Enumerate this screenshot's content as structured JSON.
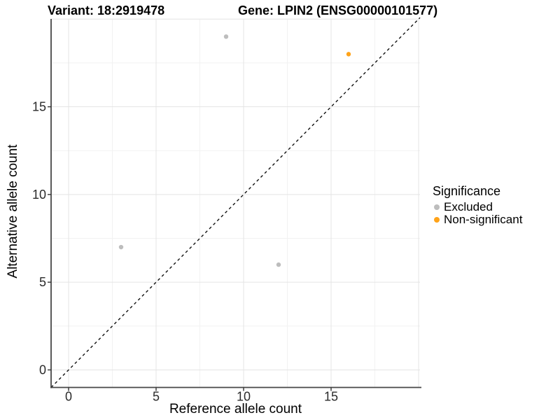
{
  "chart_data": {
    "type": "scatter",
    "title_left": "Variant: 18:2919478",
    "title_right": "Gene: LPIN2 (ENSG00000101577)",
    "xlabel": "Reference allele count",
    "ylabel": "Alternative allele count",
    "xlim": [
      -1,
      20.08
    ],
    "ylim": [
      -1,
      20.01
    ],
    "x_ticks": [
      0,
      5,
      10,
      15
    ],
    "y_ticks": [
      0,
      5,
      10,
      15
    ],
    "x_major_gridlines": [
      0,
      5,
      10,
      15,
      20
    ],
    "y_major_gridlines": [
      0,
      5,
      10,
      15,
      20
    ],
    "x_minor_gridlines": [
      2.5,
      7.5,
      12.5,
      17.5
    ],
    "y_minor_gridlines": [
      2.5,
      7.5,
      12.5,
      17.5
    ],
    "grid": "major+minor",
    "identity_line": {
      "style": "dashed",
      "equation": "y = x",
      "from": -1,
      "to": 20.08
    },
    "series": [
      {
        "name": "Excluded",
        "color": "#BDBDBD",
        "points": [
          [
            3,
            7
          ],
          [
            9,
            19
          ],
          [
            12,
            6
          ]
        ]
      },
      {
        "name": "Non-significant",
        "color": "#FFA319",
        "points": [
          [
            16,
            18
          ]
        ]
      }
    ],
    "legend": {
      "title": "Significance",
      "position": "right",
      "entries": [
        {
          "label": "Excluded",
          "color": "#BDBDBD"
        },
        {
          "label": "Non-significant",
          "color": "#FFA319"
        }
      ]
    }
  },
  "colors": {
    "background": "#FFFFFF",
    "grid_major": "#E4E4E4",
    "grid_minor": "#F2F2F2",
    "axis_line": "#474747",
    "tick_mark": "#333333",
    "tick_text": "#2B2B2B",
    "identity_line": "#111111",
    "excluded_point": "#BDBDBD",
    "non_significant_point": "#FFA319"
  }
}
